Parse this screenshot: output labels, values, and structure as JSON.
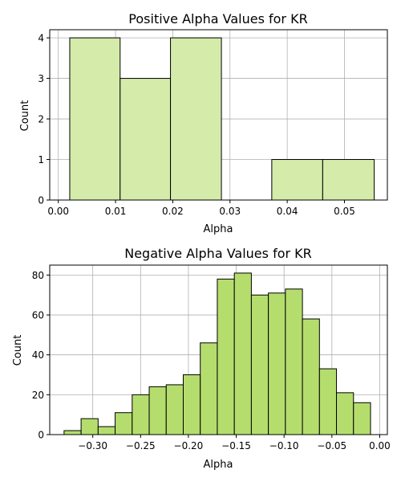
{
  "chart_data": [
    {
      "type": "bar",
      "title": "Positive Alpha Values for KR",
      "xlabel": "Alpha",
      "ylabel": "Count",
      "xlim": [
        -0.0015,
        0.0575
      ],
      "ylim": [
        0,
        4.2
      ],
      "xticks": [
        0.0,
        0.01,
        0.02,
        0.03,
        0.04,
        0.05
      ],
      "xtick_labels": [
        "0.00",
        "0.01",
        "0.02",
        "0.03",
        "0.04",
        "0.05"
      ],
      "yticks": [
        0,
        1,
        2,
        3,
        4
      ],
      "ytick_labels": [
        "0",
        "1",
        "2",
        "3",
        "4"
      ],
      "grid": true,
      "bar_color": "#d4ebaa",
      "edge_color": "#000000",
      "bins": [
        {
          "x0": 0.002,
          "x1": 0.0108,
          "count": 4
        },
        {
          "x0": 0.0108,
          "x1": 0.0196,
          "count": 3
        },
        {
          "x0": 0.0196,
          "x1": 0.0285,
          "count": 4
        },
        {
          "x0": 0.0285,
          "x1": 0.0373,
          "count": 0
        },
        {
          "x0": 0.0373,
          "x1": 0.0462,
          "count": 1
        },
        {
          "x0": 0.0462,
          "x1": 0.0552,
          "count": 1
        }
      ]
    },
    {
      "type": "bar",
      "title": "Negative Alpha Values for KR",
      "xlabel": "Alpha",
      "ylabel": "Count",
      "xlim": [
        -0.345,
        0.008
      ],
      "ylim": [
        0,
        85
      ],
      "xticks": [
        -0.3,
        -0.25,
        -0.2,
        -0.15,
        -0.1,
        -0.05,
        0.0
      ],
      "xtick_labels": [
        "−0.30",
        "−0.25",
        "−0.20",
        "−0.15",
        "−0.10",
        "−0.05",
        "0.00"
      ],
      "yticks": [
        0,
        20,
        40,
        60,
        80
      ],
      "ytick_labels": [
        "0",
        "20",
        "40",
        "60",
        "80"
      ],
      "grid": true,
      "bar_color": "#b5dd6e",
      "edge_color": "#000000",
      "bins": [
        {
          "x0": -0.33,
          "x1": -0.3122,
          "count": 2
        },
        {
          "x0": -0.3122,
          "x1": -0.2944,
          "count": 8
        },
        {
          "x0": -0.2944,
          "x1": -0.2766,
          "count": 4
        },
        {
          "x0": -0.2766,
          "x1": -0.2588,
          "count": 11
        },
        {
          "x0": -0.2588,
          "x1": -0.241,
          "count": 20
        },
        {
          "x0": -0.241,
          "x1": -0.2232,
          "count": 24
        },
        {
          "x0": -0.2232,
          "x1": -0.2054,
          "count": 25
        },
        {
          "x0": -0.2054,
          "x1": -0.1876,
          "count": 30
        },
        {
          "x0": -0.1876,
          "x1": -0.1698,
          "count": 46
        },
        {
          "x0": -0.1698,
          "x1": -0.152,
          "count": 78
        },
        {
          "x0": -0.152,
          "x1": -0.1342,
          "count": 81
        },
        {
          "x0": -0.1342,
          "x1": -0.1164,
          "count": 70
        },
        {
          "x0": -0.1164,
          "x1": -0.0986,
          "count": 71
        },
        {
          "x0": -0.0986,
          "x1": -0.0808,
          "count": 73
        },
        {
          "x0": -0.0808,
          "x1": -0.063,
          "count": 58
        },
        {
          "x0": -0.063,
          "x1": -0.0452,
          "count": 33
        },
        {
          "x0": -0.0452,
          "x1": -0.0274,
          "count": 21
        },
        {
          "x0": -0.0274,
          "x1": -0.0096,
          "count": 16
        }
      ]
    }
  ]
}
